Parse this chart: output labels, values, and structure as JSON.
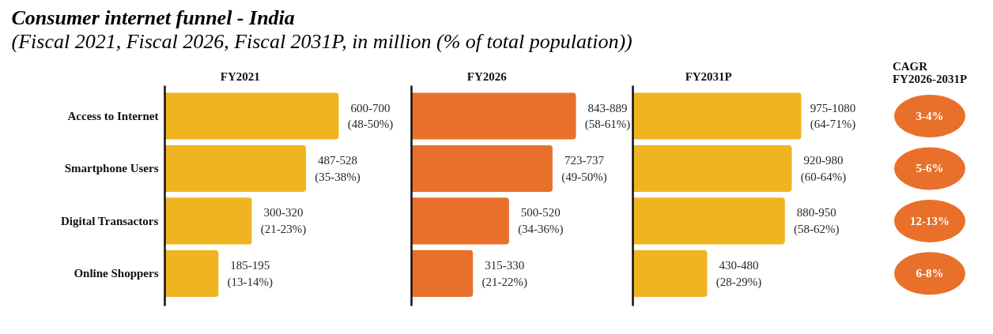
{
  "chart_data": [
    {
      "type": "other",
      "title": "Consumer internet funnel - India",
      "subtitle": "(Fiscal 2021, Fiscal 2026, Fiscal 2031P, in million (% of total population))"
    },
    {
      "type": "bar",
      "orientation": "horizontal",
      "title": "FY2021",
      "categories": [
        "Access to Internet",
        "Smartphone Users",
        "Digital Transactors",
        "Online Shoppers"
      ],
      "values": [
        600,
        487,
        300,
        185
      ],
      "color": "#efb421",
      "value_labels": [
        "600-700\n(48-50%)",
        "487-528\n(35-38%)",
        "300-320\n(21-23%)",
        "185-195\n(13-14%)"
      ],
      "tick_labels": "y"
    },
    {
      "type": "bar",
      "orientation": "horizontal",
      "title": "FY2026",
      "categories": [
        null,
        null,
        null,
        null
      ],
      "values": [
        843,
        723,
        500,
        315
      ],
      "color": "#e8702a",
      "value_labels": [
        "843-889\n(58-61%)",
        "723-737\n(49-50%)",
        "500-520\n(34-36%)",
        "315-330\n(21-22%)"
      ],
      "tick_labels": false
    },
    {
      "type": "bar",
      "orientation": "horizontal",
      "title": "FY2031P",
      "categories": [
        null,
        null,
        null,
        null
      ],
      "values": [
        975,
        920,
        880,
        430
      ],
      "color": "#efb421",
      "value_labels": [
        "975-1080\n(64-71%)",
        "920-980\n(60-64%)",
        "880-950\n(58-62%)",
        "430-480\n(28-29%)"
      ],
      "tick_labels": false
    },
    {
      "type": "other",
      "title": "CAGR\nFY2026-2031P",
      "annotations": [
        "3-4%",
        "5-6%",
        "12-13%",
        "6-8%"
      ],
      "color": "#e8702a"
    }
  ]
}
